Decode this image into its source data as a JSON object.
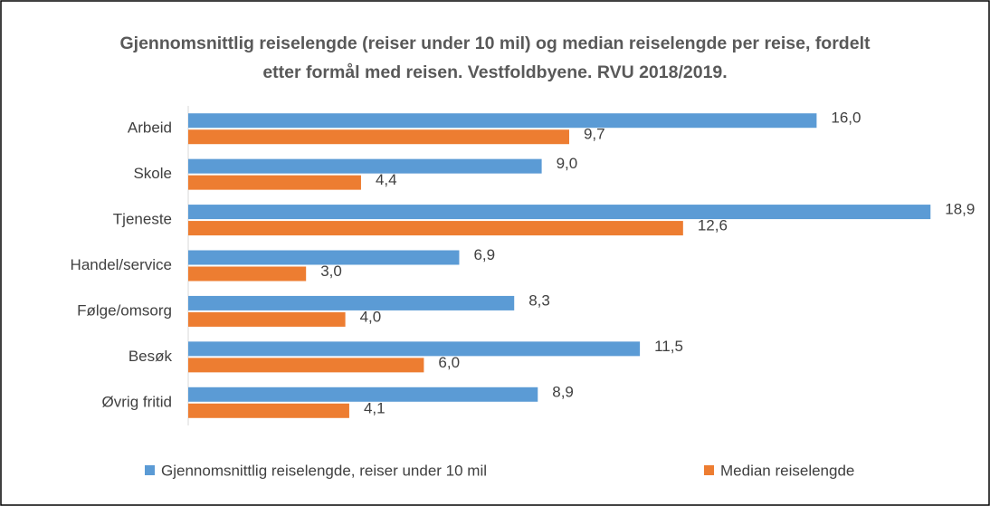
{
  "chart_data": {
    "type": "hbar",
    "title": "Gjennomsnittlig reiselengde (reiser under 10 mil) og median reiselengde per reise, fordelt etter formål med reisen. Vestfoldbyene. RVU 2018/2019.",
    "categories": [
      "Arbeid",
      "Skole",
      "Tjeneste",
      "Handel/service",
      "Følge/omsorg",
      "Besøk",
      "Øvrig fritid"
    ],
    "series": [
      {
        "name": "Gjennomsnittlig reiselengde, reiser under 10 mil",
        "color": "#5b9bd5",
        "values": [
          16.0,
          9.0,
          18.9,
          6.9,
          8.3,
          11.5,
          8.9
        ],
        "value_labels": [
          "16,0",
          "9,0",
          "18,9",
          "6,9",
          "8,3",
          "11,5",
          "8,9"
        ]
      },
      {
        "name": "Median reiselengde",
        "color": "#ed7d31",
        "values": [
          9.7,
          4.4,
          12.6,
          3.0,
          4.0,
          6.0,
          4.1
        ],
        "value_labels": [
          "9,7",
          "4,4",
          "12,6",
          "3,0",
          "4,0",
          "6,0",
          "4,1"
        ]
      }
    ],
    "xlim": [
      0,
      20
    ],
    "legend": "bottom"
  }
}
